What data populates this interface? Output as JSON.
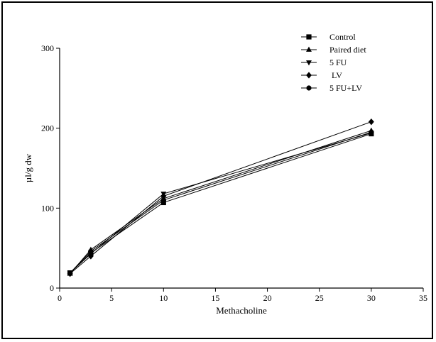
{
  "chart_data": {
    "type": "line",
    "title": "",
    "xlabel": "Methacholine",
    "ylabel": "µl/g dw",
    "xlim": [
      0,
      35
    ],
    "ylim": [
      0,
      300
    ],
    "x_ticks": [
      0,
      5,
      10,
      15,
      20,
      25,
      30,
      35
    ],
    "y_ticks": [
      0,
      100,
      200,
      300
    ],
    "grid": false,
    "legend_position": "top-right",
    "x": [
      1,
      3,
      10,
      30
    ],
    "series": [
      {
        "name": "Control",
        "marker": "square",
        "values": [
          19,
          44,
          107,
          193
        ]
      },
      {
        "name": "Paired diet",
        "marker": "triangle-up",
        "values": [
          18,
          48,
          112,
          197
        ]
      },
      {
        "name": "5 FU",
        "marker": "triangle-down",
        "values": [
          19,
          43,
          118,
          194
        ]
      },
      {
        "name": " LV",
        "marker": "diamond",
        "values": [
          18,
          40,
          115,
          208
        ]
      },
      {
        "name": "5 FU+LV",
        "marker": "circle",
        "values": [
          19,
          46,
          110,
          195
        ]
      }
    ]
  }
}
